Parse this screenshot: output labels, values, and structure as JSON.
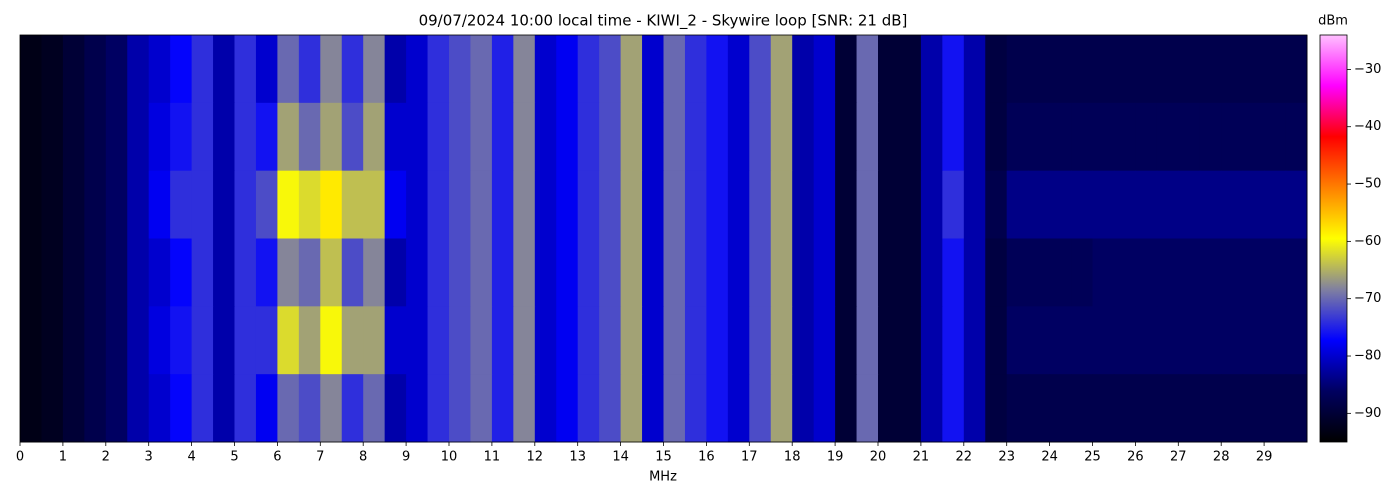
{
  "chart_data": {
    "type": "heatmap",
    "title": "09/07/2024 10:00 local time - KIWI_2 - Skywire loop [SNR: 21 dB]",
    "xlabel": "MHz",
    "colorbar_label": "dBm",
    "xlim": [
      0,
      30
    ],
    "xticks": [
      0,
      1,
      2,
      3,
      4,
      5,
      6,
      7,
      8,
      9,
      10,
      11,
      12,
      13,
      14,
      15,
      16,
      17,
      18,
      19,
      20,
      21,
      22,
      23,
      24,
      25,
      26,
      27,
      28,
      29
    ],
    "zlim": [
      -95,
      -24
    ],
    "zticks": [
      {
        "value": -90,
        "label": "−90"
      },
      {
        "value": -80,
        "label": "−80"
      },
      {
        "value": -70,
        "label": "−70"
      },
      {
        "value": -60,
        "label": "−60"
      },
      {
        "value": -50,
        "label": "−50"
      },
      {
        "value": -40,
        "label": "−40"
      },
      {
        "value": -30,
        "label": "−30"
      }
    ],
    "colormap": [
      "#000000",
      "#000060",
      "#0000ff",
      "#8080a0",
      "#ffff00",
      "#ff8000",
      "#ff0000",
      "#ff00ff",
      "#ffc0ff"
    ],
    "z": [
      [
        -93,
        -92,
        -90,
        -88,
        -86,
        -82,
        -80,
        -77,
        -74,
        -82,
        -74,
        -80,
        -70,
        -74,
        -68,
        -74,
        -68,
        -82,
        -80,
        -74,
        -72,
        -70,
        -75,
        -68,
        -80,
        -78,
        -74,
        -72,
        -66,
        -80,
        -70,
        -74,
        -76,
        -80,
        -72,
        -66,
        -82,
        -80,
        -90,
        -70,
        -90,
        -90,
        -82,
        -76,
        -82,
        -89,
        -88,
        -88,
        -88,
        -88,
        -88,
        -88,
        -88,
        -88,
        -88,
        -88,
        -88,
        -88,
        -88,
        -88
      ],
      [
        -93,
        -92,
        -90,
        -88,
        -86,
        -82,
        -79,
        -76,
        -74,
        -82,
        -74,
        -76,
        -66,
        -70,
        -66,
        -72,
        -66,
        -80,
        -80,
        -74,
        -72,
        -70,
        -75,
        -68,
        -80,
        -78,
        -74,
        -72,
        -66,
        -80,
        -70,
        -74,
        -76,
        -80,
        -72,
        -66,
        -82,
        -80,
        -90,
        -70,
        -90,
        -90,
        -82,
        -76,
        -82,
        -89,
        -87,
        -87,
        -87,
        -87,
        -87,
        -87,
        -87,
        -87,
        -87,
        -87,
        -87,
        -87,
        -87,
        -87
      ],
      [
        -93,
        -92,
        -90,
        -88,
        -86,
        -82,
        -78,
        -74,
        -74,
        -82,
        -74,
        -72,
        -60,
        -62,
        -58,
        -64,
        -64,
        -78,
        -80,
        -74,
        -72,
        -70,
        -75,
        -68,
        -80,
        -78,
        -74,
        -72,
        -66,
        -80,
        -70,
        -74,
        -76,
        -80,
        -72,
        -66,
        -82,
        -80,
        -90,
        -70,
        -90,
        -90,
        -82,
        -74,
        -82,
        -88,
        -84,
        -84,
        -84,
        -84,
        -84,
        -84,
        -84,
        -84,
        -84,
        -84,
        -84,
        -84,
        -84,
        -84
      ],
      [
        -93,
        -92,
        -90,
        -88,
        -86,
        -82,
        -80,
        -77,
        -74,
        -82,
        -74,
        -76,
        -68,
        -70,
        -64,
        -72,
        -68,
        -82,
        -80,
        -74,
        -72,
        -70,
        -75,
        -68,
        -80,
        -78,
        -74,
        -72,
        -66,
        -80,
        -70,
        -74,
        -76,
        -80,
        -72,
        -66,
        -82,
        -80,
        -90,
        -70,
        -90,
        -90,
        -82,
        -76,
        -82,
        -89,
        -87,
        -87,
        -87,
        -87,
        -86,
        -86,
        -86,
        -86,
        -86,
        -86,
        -86,
        -86,
        -86,
        -86
      ],
      [
        -93,
        -92,
        -90,
        -88,
        -86,
        -82,
        -79,
        -76,
        -74,
        -82,
        -74,
        -74,
        -62,
        -66,
        -60,
        -66,
        -66,
        -80,
        -80,
        -74,
        -72,
        -70,
        -75,
        -68,
        -80,
        -78,
        -74,
        -72,
        -66,
        -80,
        -70,
        -74,
        -76,
        -80,
        -72,
        -66,
        -82,
        -80,
        -90,
        -70,
        -90,
        -90,
        -82,
        -76,
        -82,
        -89,
        -86,
        -86,
        -86,
        -86,
        -86,
        -86,
        -86,
        -86,
        -86,
        -86,
        -86,
        -86,
        -86,
        -86
      ],
      [
        -93,
        -92,
        -90,
        -88,
        -86,
        -82,
        -80,
        -77,
        -74,
        -82,
        -74,
        -78,
        -70,
        -72,
        -68,
        -74,
        -70,
        -82,
        -80,
        -74,
        -72,
        -70,
        -75,
        -68,
        -80,
        -78,
        -74,
        -72,
        -66,
        -80,
        -70,
        -74,
        -76,
        -80,
        -72,
        -66,
        -82,
        -80,
        -90,
        -70,
        -90,
        -90,
        -82,
        -76,
        -82,
        -89,
        -88,
        -88,
        -88,
        -88,
        -88,
        -88,
        -88,
        -88,
        -88,
        -88,
        -88,
        -88,
        -88,
        -88
      ]
    ]
  }
}
